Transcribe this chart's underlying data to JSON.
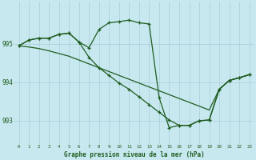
{
  "title": "Graphe pression niveau de la mer (hPa)",
  "bg_color": "#c8e8f0",
  "line_color": "#1e5c1e",
  "grid_color": "#a8ccd8",
  "ylim": [
    992.4,
    996.1
  ],
  "yticks": [
    993,
    994,
    995
  ],
  "xlim": [
    -0.5,
    23.5
  ],
  "series1_x": [
    0,
    1,
    2,
    3,
    4,
    5,
    6,
    7,
    8,
    9,
    10,
    11,
    12,
    13,
    14,
    15,
    16,
    17,
    18,
    19,
    20,
    21,
    22,
    23
  ],
  "series1_y": [
    994.95,
    995.1,
    995.15,
    995.15,
    995.25,
    995.28,
    995.05,
    994.9,
    995.38,
    995.55,
    995.58,
    995.62,
    995.55,
    995.52,
    993.6,
    992.82,
    992.88,
    992.88,
    993.0,
    993.02,
    993.82,
    994.05,
    994.12,
    994.2
  ],
  "series2_x": [
    0,
    1,
    2,
    3,
    4,
    5,
    6,
    7,
    8,
    9,
    10,
    11,
    12,
    13,
    14,
    15,
    16,
    17,
    18,
    19,
    20,
    21,
    22,
    23
  ],
  "series2_y": [
    994.95,
    995.1,
    995.15,
    995.15,
    995.25,
    995.28,
    995.05,
    994.65,
    994.38,
    994.18,
    993.98,
    993.82,
    993.62,
    993.42,
    993.22,
    993.02,
    992.88,
    992.88,
    993.0,
    993.02,
    993.82,
    994.05,
    994.12,
    994.2
  ],
  "series3_x": [
    0,
    1,
    2,
    3,
    4,
    5,
    6,
    7,
    8,
    9,
    10,
    11,
    12,
    13,
    14,
    15,
    16,
    17,
    18,
    19,
    20,
    21,
    22,
    23
  ],
  "series3_y": [
    994.95,
    994.92,
    994.88,
    994.82,
    994.75,
    994.68,
    994.58,
    994.48,
    994.38,
    994.28,
    994.18,
    994.08,
    993.98,
    993.88,
    993.78,
    993.68,
    993.58,
    993.48,
    993.38,
    993.28,
    993.82,
    994.05,
    994.12,
    994.2
  ],
  "marker": "+",
  "markersize": 3.5,
  "linewidth": 0.9
}
